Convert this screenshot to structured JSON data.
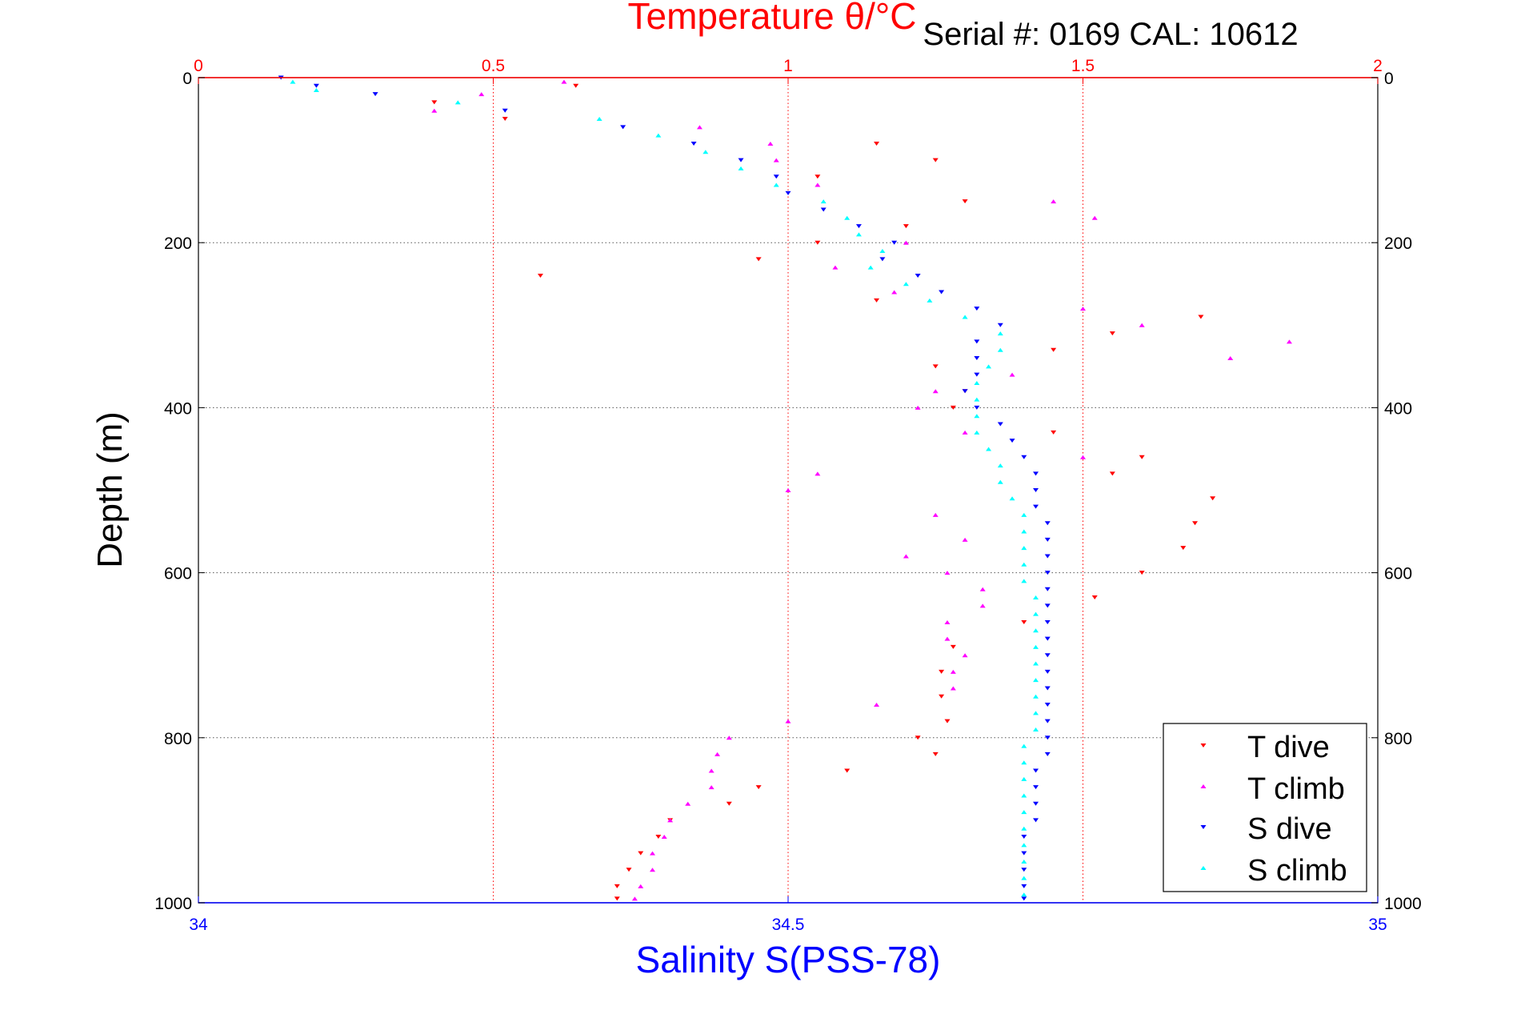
{
  "chart_data": {
    "type": "scatter",
    "title": "Temperature θ/°C",
    "subtitle": "Serial #: 0169 CAL: 10612",
    "xlabel": "Salinity S(PSS-78)",
    "ylabel": "Depth (m)",
    "x_top": {
      "label": "Temperature θ/°C",
      "lim": [
        0,
        2
      ],
      "ticks": [
        "0",
        "0.5",
        "1",
        "1.5",
        "2"
      ],
      "color": "#ff0000"
    },
    "x_bottom": {
      "label": "Salinity S(PSS-78)",
      "lim": [
        34,
        35
      ],
      "ticks": [
        "34",
        "34.5",
        "35"
      ],
      "color": "#0000ff"
    },
    "y": {
      "lim": [
        0,
        1000
      ],
      "reversed": true,
      "ticks": [
        "0",
        "200",
        "400",
        "600",
        "800",
        "1000"
      ]
    },
    "grid": {
      "temperature_vertical": true,
      "depth_horizontal": true
    },
    "legend_position": "bottom-right",
    "series": [
      {
        "name": "T dive",
        "axis": "temperature",
        "color": "#ff0000",
        "marker": "triangle-down",
        "depth": [
          10,
          30,
          50,
          80,
          100,
          120,
          150,
          180,
          200,
          220,
          240,
          270,
          290,
          310,
          330,
          350,
          380,
          400,
          430,
          460,
          480,
          510,
          540,
          570,
          600,
          630,
          660,
          690,
          720,
          750,
          780,
          800,
          820,
          840,
          860,
          880,
          900,
          920,
          940,
          960,
          980,
          995
        ],
        "values": [
          0.64,
          0.4,
          0.52,
          1.15,
          1.25,
          1.05,
          1.3,
          1.2,
          1.05,
          0.95,
          0.58,
          1.15,
          1.7,
          1.55,
          1.45,
          1.25,
          1.3,
          1.28,
          1.45,
          1.6,
          1.55,
          1.72,
          1.69,
          1.67,
          1.6,
          1.52,
          1.4,
          1.28,
          1.26,
          1.26,
          1.27,
          1.22,
          1.25,
          1.1,
          0.95,
          0.9,
          0.8,
          0.78,
          0.75,
          0.73,
          0.71,
          0.71
        ]
      },
      {
        "name": "T climb",
        "axis": "temperature",
        "color": "#ff00ff",
        "marker": "triangle-up",
        "depth": [
          5,
          20,
          40,
          60,
          80,
          100,
          130,
          150,
          170,
          200,
          230,
          260,
          280,
          300,
          320,
          340,
          360,
          380,
          400,
          430,
          460,
          480,
          500,
          530,
          560,
          580,
          600,
          620,
          640,
          660,
          680,
          700,
          720,
          740,
          760,
          780,
          800,
          820,
          840,
          860,
          880,
          900,
          920,
          940,
          960,
          980,
          995
        ],
        "values": [
          0.62,
          0.48,
          0.4,
          0.85,
          0.97,
          0.98,
          1.05,
          1.45,
          1.52,
          1.2,
          1.08,
          1.18,
          1.5,
          1.6,
          1.85,
          1.75,
          1.38,
          1.25,
          1.22,
          1.3,
          1.5,
          1.05,
          1.0,
          1.25,
          1.3,
          1.2,
          1.27,
          1.33,
          1.33,
          1.27,
          1.27,
          1.3,
          1.28,
          1.28,
          1.15,
          1.0,
          0.9,
          0.88,
          0.87,
          0.87,
          0.83,
          0.8,
          0.79,
          0.77,
          0.77,
          0.75,
          0.74
        ]
      },
      {
        "name": "S dive",
        "axis": "salinity",
        "color": "#0000ff",
        "marker": "triangle-down",
        "depth": [
          0,
          10,
          20,
          40,
          60,
          80,
          100,
          120,
          140,
          160,
          180,
          200,
          220,
          240,
          260,
          280,
          300,
          320,
          340,
          360,
          380,
          400,
          420,
          440,
          460,
          480,
          500,
          520,
          540,
          560,
          580,
          600,
          620,
          640,
          660,
          680,
          700,
          720,
          740,
          760,
          780,
          800,
          820,
          840,
          860,
          880,
          900,
          920,
          940,
          960,
          980,
          995
        ],
        "values": [
          34.07,
          34.1,
          34.15,
          34.26,
          34.36,
          34.42,
          34.46,
          34.49,
          34.5,
          34.53,
          34.56,
          34.59,
          34.58,
          34.61,
          34.63,
          34.66,
          34.68,
          34.66,
          34.66,
          34.66,
          34.65,
          34.66,
          34.68,
          34.69,
          34.7,
          34.71,
          34.71,
          34.71,
          34.72,
          34.72,
          34.72,
          34.72,
          34.72,
          34.72,
          34.72,
          34.72,
          34.72,
          34.72,
          34.72,
          34.72,
          34.72,
          34.72,
          34.72,
          34.71,
          34.71,
          34.71,
          34.71,
          34.7,
          34.7,
          34.7,
          34.7,
          34.7
        ]
      },
      {
        "name": "S climb",
        "axis": "salinity",
        "color": "#00ffff",
        "marker": "triangle-up",
        "depth": [
          5,
          15,
          30,
          50,
          70,
          90,
          110,
          130,
          150,
          170,
          190,
          210,
          230,
          250,
          270,
          290,
          310,
          330,
          350,
          370,
          390,
          410,
          430,
          450,
          470,
          490,
          510,
          530,
          550,
          570,
          590,
          610,
          630,
          650,
          670,
          690,
          710,
          730,
          750,
          770,
          790,
          810,
          830,
          850,
          870,
          890,
          910,
          930,
          950,
          970,
          990
        ],
        "values": [
          34.08,
          34.1,
          34.22,
          34.34,
          34.39,
          34.43,
          34.46,
          34.49,
          34.53,
          34.55,
          34.56,
          34.58,
          34.57,
          34.6,
          34.62,
          34.65,
          34.68,
          34.68,
          34.67,
          34.66,
          34.66,
          34.66,
          34.66,
          34.67,
          34.68,
          34.68,
          34.69,
          34.7,
          34.7,
          34.7,
          34.7,
          34.7,
          34.71,
          34.71,
          34.71,
          34.71,
          34.71,
          34.71,
          34.71,
          34.71,
          34.71,
          34.7,
          34.7,
          34.7,
          34.7,
          34.7,
          34.7,
          34.7,
          34.7,
          34.7,
          34.7
        ]
      }
    ]
  }
}
